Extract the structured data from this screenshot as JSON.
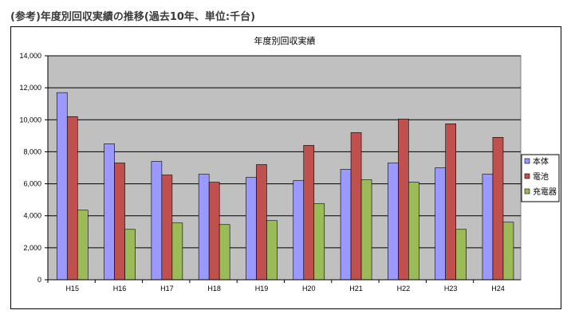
{
  "heading": "(参考)年度別回収実績の推移(過去10年、単位:千台)",
  "chart_data": {
    "type": "bar",
    "title": "年度別回収実績",
    "categories": [
      "H15",
      "H16",
      "H17",
      "H18",
      "H19",
      "H20",
      "H21",
      "H22",
      "H23",
      "H24"
    ],
    "series": [
      {
        "name": "本体",
        "color": "#9999ff",
        "values": [
          11700,
          8500,
          7400,
          6600,
          6400,
          6200,
          6900,
          7300,
          7000,
          6600
        ]
      },
      {
        "name": "電池",
        "color": "#c0504d",
        "values": [
          10200,
          7300,
          6550,
          6100,
          7200,
          8400,
          9200,
          10050,
          9750,
          8900
        ]
      },
      {
        "name": "充電器",
        "color": "#9bbb59",
        "values": [
          4350,
          3150,
          3550,
          3450,
          3700,
          4750,
          6250,
          6100,
          3150,
          3600
        ]
      }
    ],
    "yticks": [
      "0",
      "2,000",
      "4,000",
      "6,000",
      "8,000",
      "10,000",
      "12,000",
      "14,000"
    ],
    "ylim": [
      0,
      14000
    ],
    "grid": true,
    "plot_background": "#c0c0c0",
    "legend_position": "right"
  }
}
